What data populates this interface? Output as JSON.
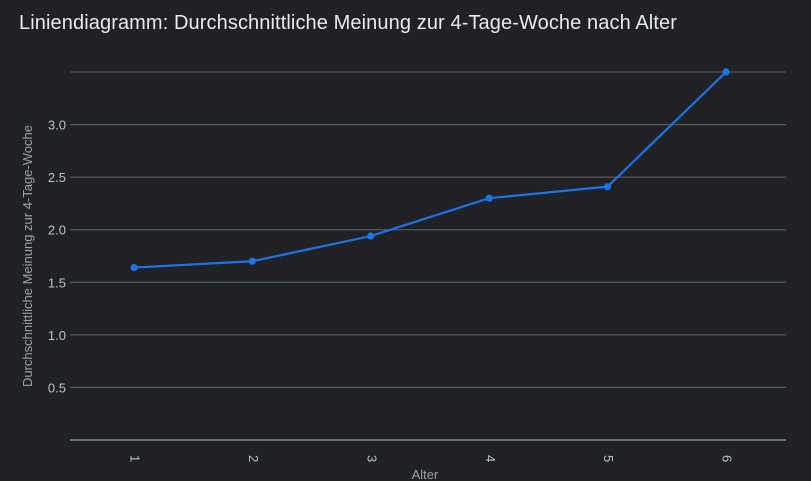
{
  "chart_data": {
    "type": "line",
    "title": "Liniendiagramm: Durchschnittliche Meinung zur 4-Tage-Woche nach Alter",
    "xlabel": "Alter",
    "ylabel": "Durchschnittliche Meinung zur 4-Tage-Woche",
    "x": [
      "1",
      "2",
      "3",
      "4",
      "5",
      "6"
    ],
    "series": [
      {
        "values": [
          1.64,
          1.7,
          1.94,
          2.3,
          2.41,
          3.5
        ]
      }
    ],
    "ylim": [
      0,
      3.5
    ],
    "yticks": [
      "0.5",
      "1.0",
      "1.5",
      "2.0",
      "2.5",
      "3.0"
    ],
    "grid": true,
    "legend": "none",
    "colors": {
      "background": "#202124",
      "line": "#1a73e8",
      "grid": "#5f6368",
      "text": "#e8eaed"
    }
  }
}
